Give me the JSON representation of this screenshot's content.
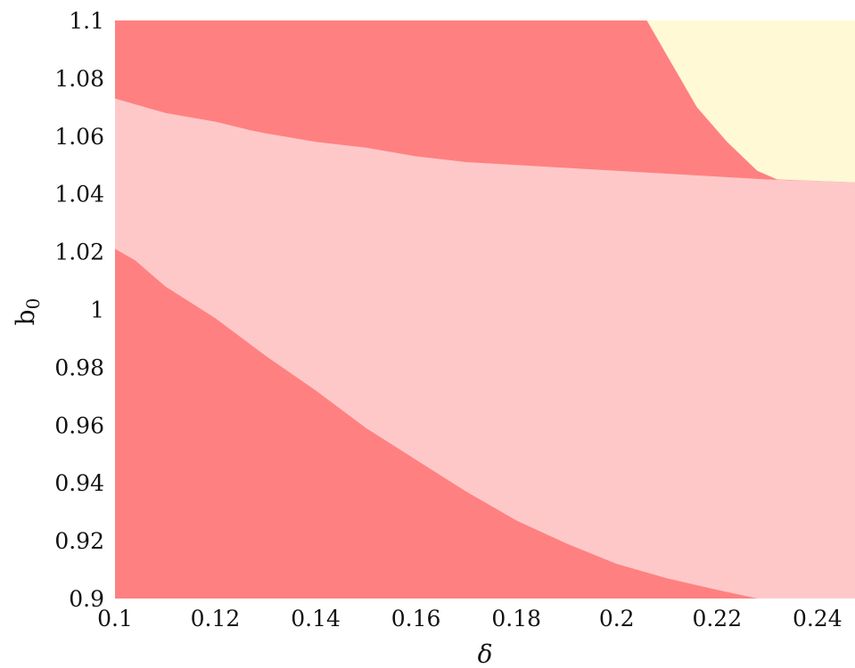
{
  "chart_data": {
    "type": "heatmap",
    "title": "",
    "xlabel": "δ",
    "ylabel_base": "b",
    "ylabel_sub": "0",
    "xlim": [
      0.1,
      0.2475
    ],
    "ylim": [
      0.9,
      1.1
    ],
    "x_ticks": [
      0.1,
      0.12,
      0.14,
      0.16,
      0.18,
      0.2,
      0.22,
      0.24
    ],
    "x_tick_labels": [
      "0.1",
      "0.12",
      "0.14",
      "0.16",
      "0.18",
      "0.2",
      "0.22",
      "0.24"
    ],
    "y_ticks": [
      0.9,
      0.92,
      0.94,
      0.96,
      0.98,
      1.0,
      1.02,
      1.04,
      1.06,
      1.08,
      1.1
    ],
    "y_tick_labels": [
      "0.9",
      "0.92",
      "0.94",
      "0.96",
      "0.98",
      "1",
      "1.02",
      "1.04",
      "1.06",
      "1.08",
      "1.1"
    ],
    "grid": false,
    "colors": {
      "dark_region": "#ff8080",
      "light_region": "#ffc8c8",
      "cream_region": "#fff9d6"
    },
    "boundaries": {
      "lower": [
        [
          0.1,
          1.021
        ],
        [
          0.104,
          1.017
        ],
        [
          0.11,
          1.008
        ],
        [
          0.12,
          0.997
        ],
        [
          0.13,
          0.984
        ],
        [
          0.14,
          0.972
        ],
        [
          0.15,
          0.959
        ],
        [
          0.16,
          0.948
        ],
        [
          0.17,
          0.937
        ],
        [
          0.18,
          0.927
        ],
        [
          0.19,
          0.919
        ],
        [
          0.2,
          0.912
        ],
        [
          0.21,
          0.907
        ],
        [
          0.22,
          0.903
        ],
        [
          0.228,
          0.9
        ]
      ],
      "upper": [
        [
          0.1,
          1.073
        ],
        [
          0.11,
          1.068
        ],
        [
          0.12,
          1.065
        ],
        [
          0.127,
          1.062
        ],
        [
          0.13,
          1.061
        ],
        [
          0.14,
          1.058
        ],
        [
          0.15,
          1.056
        ],
        [
          0.16,
          1.053
        ],
        [
          0.17,
          1.051
        ],
        [
          0.18,
          1.05
        ],
        [
          0.19,
          1.049
        ],
        [
          0.2,
          1.048
        ],
        [
          0.21,
          1.047
        ],
        [
          0.22,
          1.046
        ],
        [
          0.23,
          1.045
        ],
        [
          0.2475,
          1.044
        ]
      ],
      "cream": [
        [
          0.206,
          1.1
        ],
        [
          0.2475,
          1.1
        ],
        [
          0.2475,
          1.044
        ],
        [
          0.232,
          1.045
        ],
        [
          0.228,
          1.048
        ],
        [
          0.222,
          1.058
        ],
        [
          0.216,
          1.07
        ],
        [
          0.211,
          1.085
        ],
        [
          0.206,
          1.1
        ]
      ]
    }
  }
}
